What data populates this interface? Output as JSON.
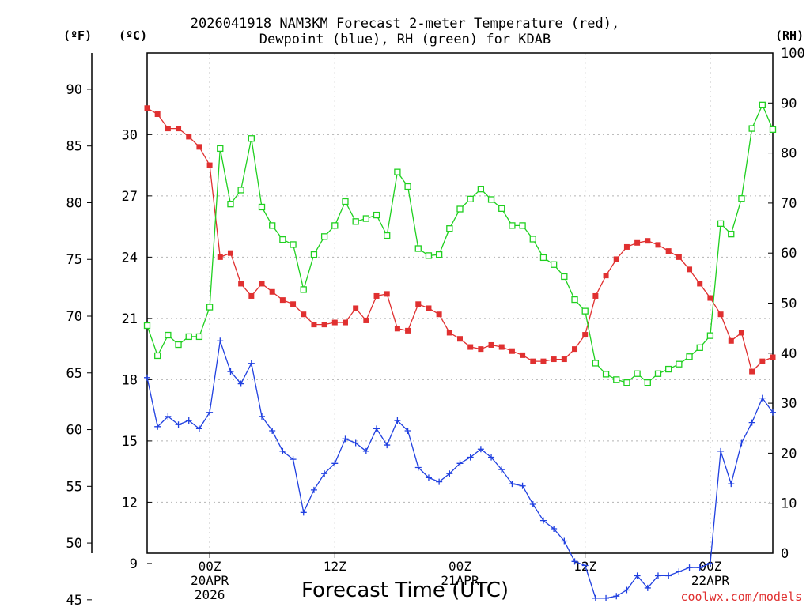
{
  "chart_data": {
    "type": "line",
    "title_lines": [
      "2026041918 NAM3KM Forecast 2-meter Temperature (red),",
      "Dewpoint (blue), RH (green) for KDAB"
    ],
    "xlabel": "Forecast Time (UTC)",
    "units": {
      "fahrenheit": "(ºF)",
      "celsius": "(ºC)",
      "rh": "(RH)"
    },
    "x_range_hours": [
      -5,
      45
    ],
    "x_ticks": [
      {
        "hour": 0,
        "lines": [
          "00Z",
          "20APR",
          "2026"
        ]
      },
      {
        "hour": 10,
        "lines": [
          "12Z"
        ]
      },
      {
        "hour": 20,
        "lines": [
          "00Z",
          "21APR"
        ]
      },
      {
        "hour": 30,
        "lines": [
          "12Z"
        ]
      },
      {
        "hour": 40,
        "lines": [
          "00Z",
          "22APR"
        ]
      }
    ],
    "y_celsius": {
      "range": [
        9.5,
        34
      ],
      "ticks": [
        9,
        12,
        15,
        18,
        21,
        24,
        27,
        30
      ]
    },
    "y_fahrenheit": {
      "ticks": [
        45,
        50,
        55,
        60,
        65,
        70,
        75,
        80,
        85,
        90
      ]
    },
    "y_rh": {
      "range": [
        0,
        100
      ],
      "ticks": [
        0,
        10,
        20,
        30,
        40,
        50,
        60,
        70,
        80,
        90,
        100
      ]
    },
    "series": [
      {
        "name": "Temperature",
        "color": "#e03030",
        "axis": "celsius",
        "marker": "filled-square",
        "values": [
          31.3,
          31.0,
          30.3,
          30.3,
          29.9,
          29.4,
          28.5,
          24.0,
          24.2,
          22.7,
          22.1,
          22.7,
          22.3,
          21.9,
          21.7,
          21.2,
          20.7,
          20.7,
          20.8,
          20.8,
          21.5,
          20.9,
          22.1,
          22.2,
          20.5,
          20.4,
          21.7,
          21.5,
          21.2,
          20.3,
          20.0,
          19.6,
          19.5,
          19.7,
          19.6,
          19.4,
          19.2,
          18.9,
          18.9,
          19.0,
          19.0,
          19.5,
          20.2,
          22.1,
          23.1,
          23.9,
          24.5,
          24.7,
          24.8,
          24.6,
          24.3,
          24.0,
          23.4,
          22.7,
          22.0,
          21.2,
          19.9,
          20.3,
          18.4,
          18.9,
          19.1
        ]
      },
      {
        "name": "Dewpoint",
        "color": "#2040e0",
        "axis": "celsius",
        "marker": "plus",
        "values": [
          18.1,
          15.7,
          16.2,
          15.8,
          16.0,
          15.6,
          16.4,
          19.9,
          18.4,
          17.8,
          18.8,
          16.2,
          15.5,
          14.5,
          14.1,
          11.5,
          12.6,
          13.4,
          13.9,
          15.1,
          14.9,
          14.5,
          15.6,
          14.8,
          16.0,
          15.5,
          13.7,
          13.2,
          13.0,
          13.4,
          13.9,
          14.2,
          14.6,
          14.2,
          13.6,
          12.9,
          12.8,
          11.9,
          11.1,
          10.7,
          10.1,
          9.1,
          8.9,
          7.3,
          7.3,
          7.4,
          7.7,
          8.4,
          7.8,
          8.4,
          8.4,
          8.6,
          8.8,
          8.8,
          9.0,
          14.5,
          12.9,
          14.9,
          15.9,
          17.1,
          16.4
        ]
      },
      {
        "name": "RH",
        "color": "#20d020",
        "axis": "rh",
        "marker": "open-square",
        "values": [
          45.5,
          39.5,
          43.6,
          41.7,
          43.3,
          43.3,
          49.2,
          80.9,
          69.8,
          72.6,
          82.9,
          69.2,
          65.5,
          62.7,
          61.7,
          52.7,
          59.7,
          63.3,
          65.5,
          70.3,
          66.3,
          66.9,
          67.6,
          63.5,
          76.2,
          73.3,
          60.9,
          59.5,
          59.7,
          64.9,
          68.8,
          70.8,
          72.8,
          70.7,
          68.9,
          65.5,
          65.5,
          62.8,
          59.1,
          57.7,
          55.3,
          50.7,
          48.4,
          38.0,
          35.8,
          34.7,
          34.1,
          35.9,
          34.1,
          35.9,
          36.8,
          37.8,
          39.3,
          41.1,
          43.5,
          65.9,
          63.8,
          70.9,
          84.9,
          89.6,
          84.7
        ]
      }
    ],
    "watermark": "coolwx.com/models"
  }
}
